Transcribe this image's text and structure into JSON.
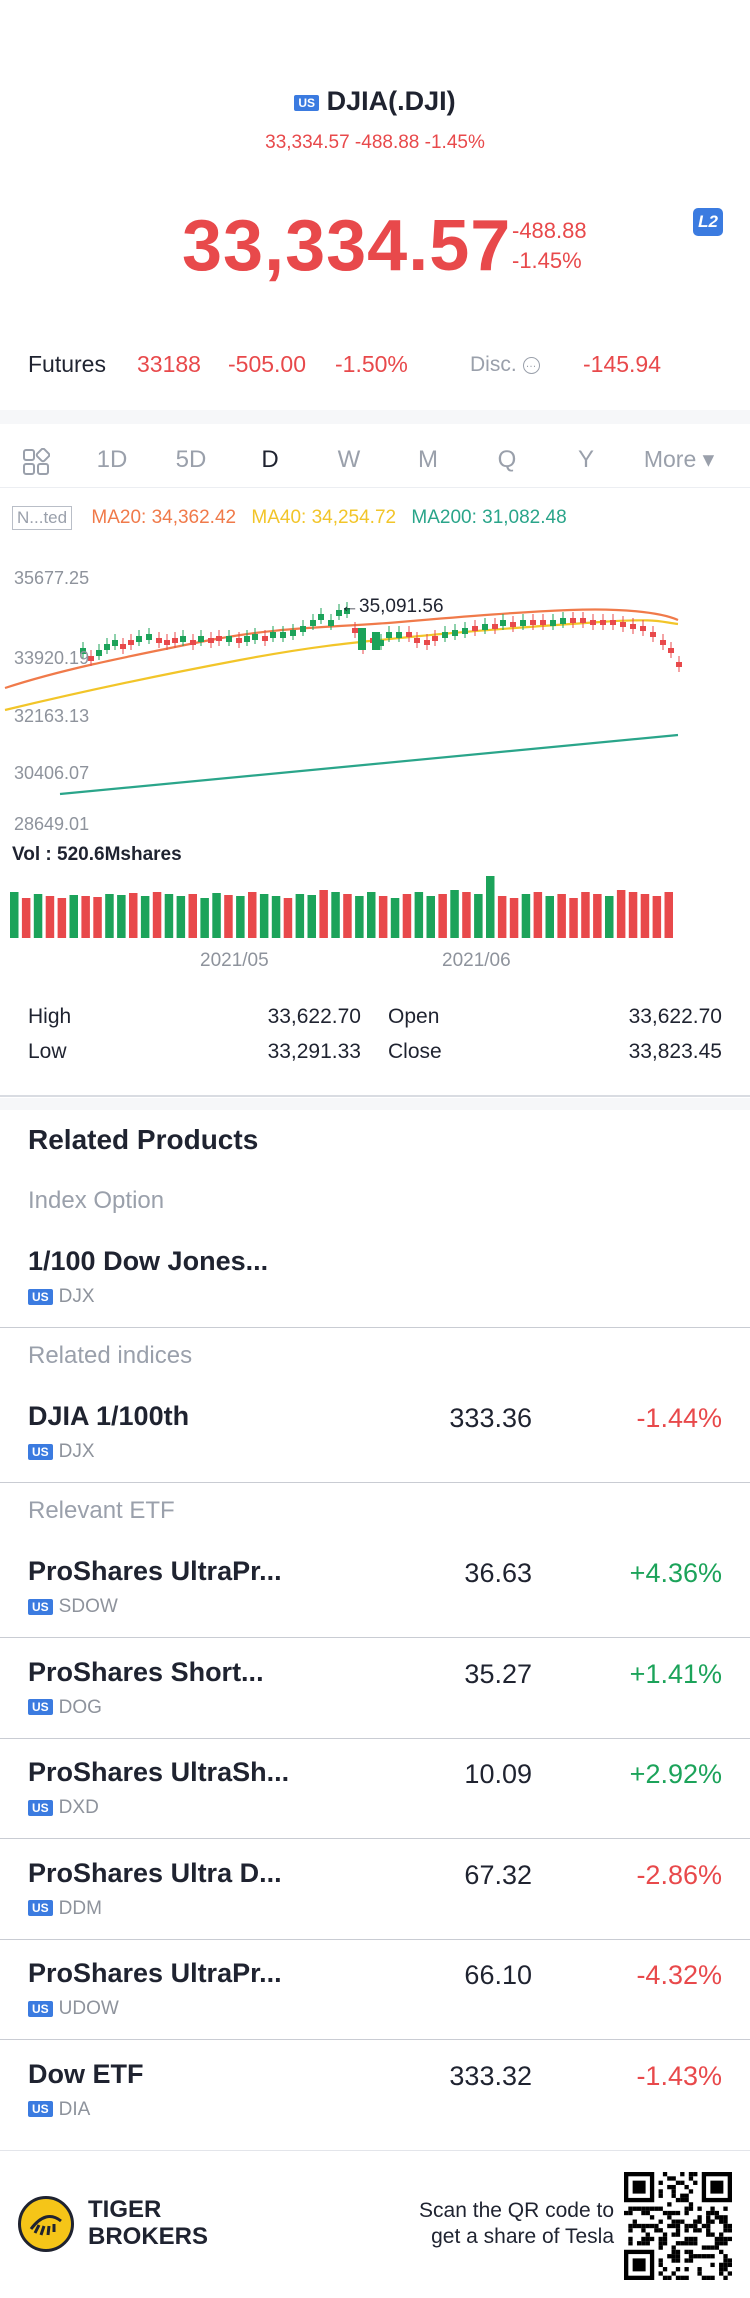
{
  "header": {
    "badge": "US",
    "title": "DJIA(.DJI)",
    "subtitle": "33,334.57 -488.88 -1.45%"
  },
  "quote": {
    "price": "33,334.57",
    "change": "-488.88",
    "change_pct": "-1.45%",
    "level_badge": "L2"
  },
  "futures": {
    "label": "Futures",
    "value": "33188",
    "change": "-505.00",
    "change_pct": "-1.50%",
    "disc_label": "Disc.",
    "disc_value": "-145.94"
  },
  "tabs": [
    "1D",
    "5D",
    "D",
    "W",
    "M",
    "Q",
    "Y",
    "More ▾"
  ],
  "active_tab": "D",
  "chart": {
    "indicator_box": "N...ted",
    "ma20": "MA20: 34,362.42",
    "ma40": "MA40: 34,254.72",
    "ma200": "MA200: 31,082.48",
    "y_labels": [
      "35677.25",
      "33920.19",
      "32163.13",
      "30406.07",
      "28649.01"
    ],
    "peak_label": "35,091.56",
    "vol_label": "Vol  : 520.6Mshares",
    "x_labels": [
      "2021/05",
      "2021/06"
    ],
    "colors": {
      "up": "#1ca35a",
      "down": "#e8494b",
      "ma20": "#f07a4a",
      "ma40": "#f2c529",
      "ma200": "#2aa58a"
    }
  },
  "chart_data": {
    "type": "candlestick",
    "y_ticks": [
      35677.25,
      33920.19,
      32163.13,
      30406.07,
      28649.01
    ],
    "ylim": [
      28649.01,
      35677.25
    ],
    "x_ticks": [
      "2021/05",
      "2021/06"
    ],
    "series": [
      {
        "name": "MA20",
        "last": 34362.42
      },
      {
        "name": "MA40",
        "last": 34254.72
      },
      {
        "name": "MA200",
        "last": 31082.48
      }
    ],
    "annotations": [
      "35,091.56"
    ],
    "volume_last": "520.6Mshares"
  },
  "stats": {
    "high_label": "High",
    "high": "33,622.70",
    "open_label": "Open",
    "open": "33,622.70",
    "low_label": "Low",
    "low": "33,291.33",
    "close_label": "Close",
    "close": "33,823.45"
  },
  "related": {
    "title": "Related Products",
    "index_option": {
      "category": "Index Option",
      "name": "1/100 Dow Jones...",
      "ticker": "DJX"
    },
    "indices": {
      "category": "Related indices",
      "items": [
        {
          "name": "DJIA 1/100th",
          "ticker": "DJX",
          "price": "333.36",
          "change": "-1.44%"
        }
      ]
    },
    "etf": {
      "category": "Relevant ETF",
      "items": [
        {
          "name": "ProShares UltraPr...",
          "ticker": "SDOW",
          "price": "36.63",
          "change": "+4.36%"
        },
        {
          "name": "ProShares Short...",
          "ticker": "DOG",
          "price": "35.27",
          "change": "+1.41%"
        },
        {
          "name": "ProShares UltraSh...",
          "ticker": "DXD",
          "price": "10.09",
          "change": "+2.92%"
        },
        {
          "name": "ProShares Ultra D...",
          "ticker": "DDM",
          "price": "67.32",
          "change": "-2.86%"
        },
        {
          "name": "ProShares UltraPr...",
          "ticker": "UDOW",
          "price": "66.10",
          "change": "-4.32%"
        },
        {
          "name": "Dow ETF",
          "ticker": "DIA",
          "price": "333.32",
          "change": "-1.43%"
        }
      ]
    }
  },
  "footer": {
    "brand_line1": "TIGER",
    "brand_line2": "BROKERS",
    "scan_line1": "Scan the QR code to",
    "scan_line2": "get a share of Tesla"
  }
}
